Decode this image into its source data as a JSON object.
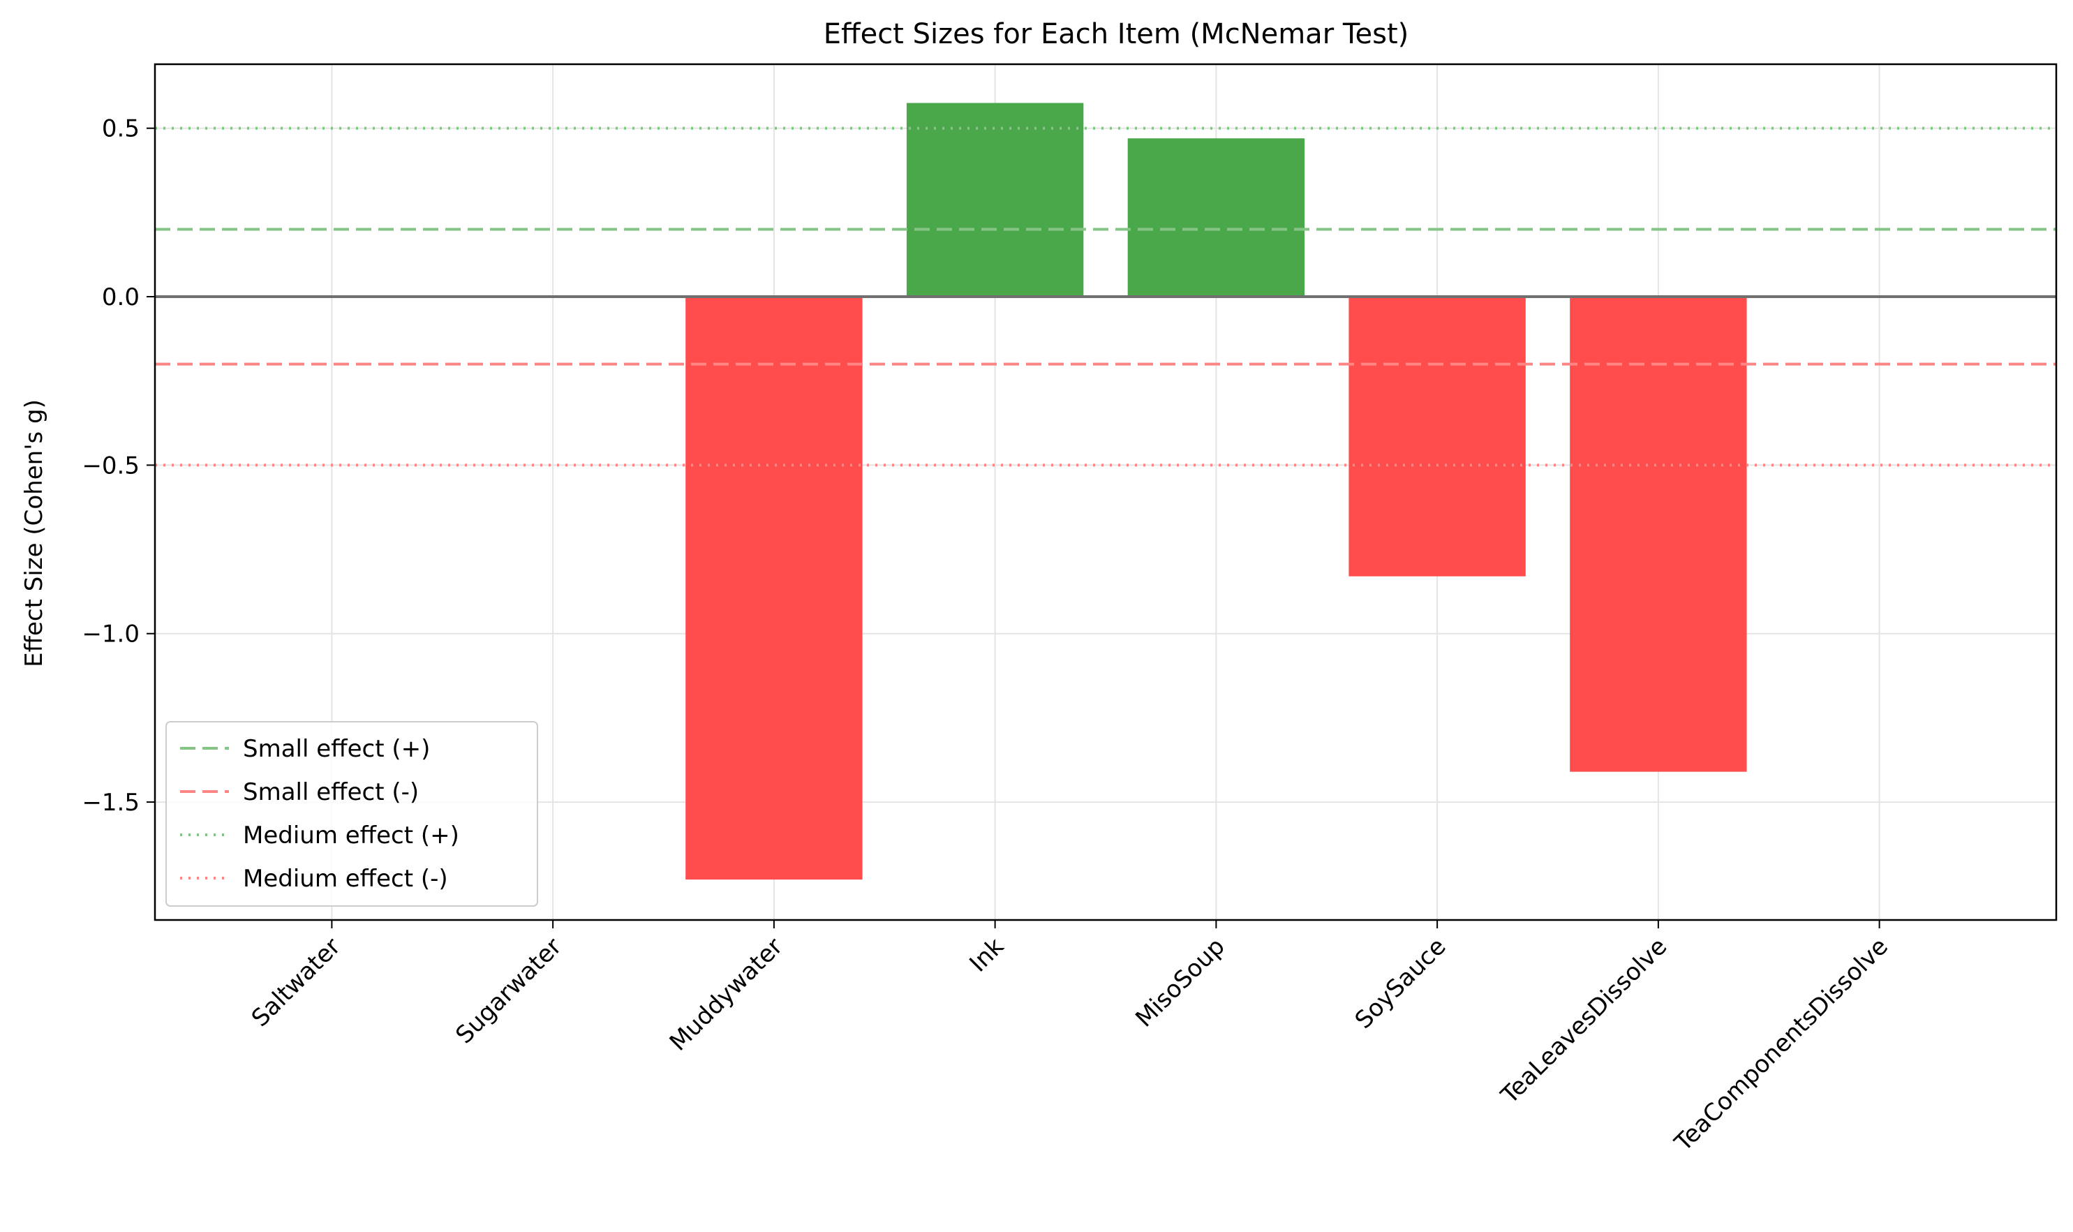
{
  "chart_data": {
    "type": "bar",
    "title": "Effect Sizes for Each Item (McNemar Test)",
    "xlabel": "",
    "ylabel": "Effect Size (Cohen's g)",
    "categories": [
      "Saltwater",
      "Sugarwater",
      "Muddywater",
      "Ink",
      "MisoSoup",
      "SoySauce",
      "TeaLeavesDissolve",
      "TeaComponentsDissolve"
    ],
    "values": [
      0.0,
      0.0,
      -1.73,
      0.575,
      0.47,
      -0.83,
      -1.41,
      0.0
    ],
    "ylim": [
      -1.85,
      0.69
    ],
    "yticks": [
      0.5,
      0.0,
      -0.5,
      -1.0,
      -1.5
    ],
    "ytick_labels": [
      "0.5",
      "0.0",
      "−0.5",
      "−1.0",
      "−1.5"
    ],
    "grid": true,
    "colors": {
      "positive": "#4aa74a",
      "negative": "#ff4d4d",
      "zero_line": "#707070",
      "grid": "#e4e4e4"
    },
    "reference_lines": [
      {
        "label": "Small effect (+)",
        "value": 0.2,
        "style": "dashed",
        "color": "#86c486"
      },
      {
        "label": "Small effect (-)",
        "value": -0.2,
        "style": "dashed",
        "color": "#ff8585"
      },
      {
        "label": "Medium effect (+)",
        "value": 0.5,
        "style": "dotted",
        "color": "#86c486"
      },
      {
        "label": "Medium effect (-)",
        "value": -0.5,
        "style": "dotted",
        "color": "#ff8585"
      }
    ],
    "legend_position": "lower-left"
  }
}
